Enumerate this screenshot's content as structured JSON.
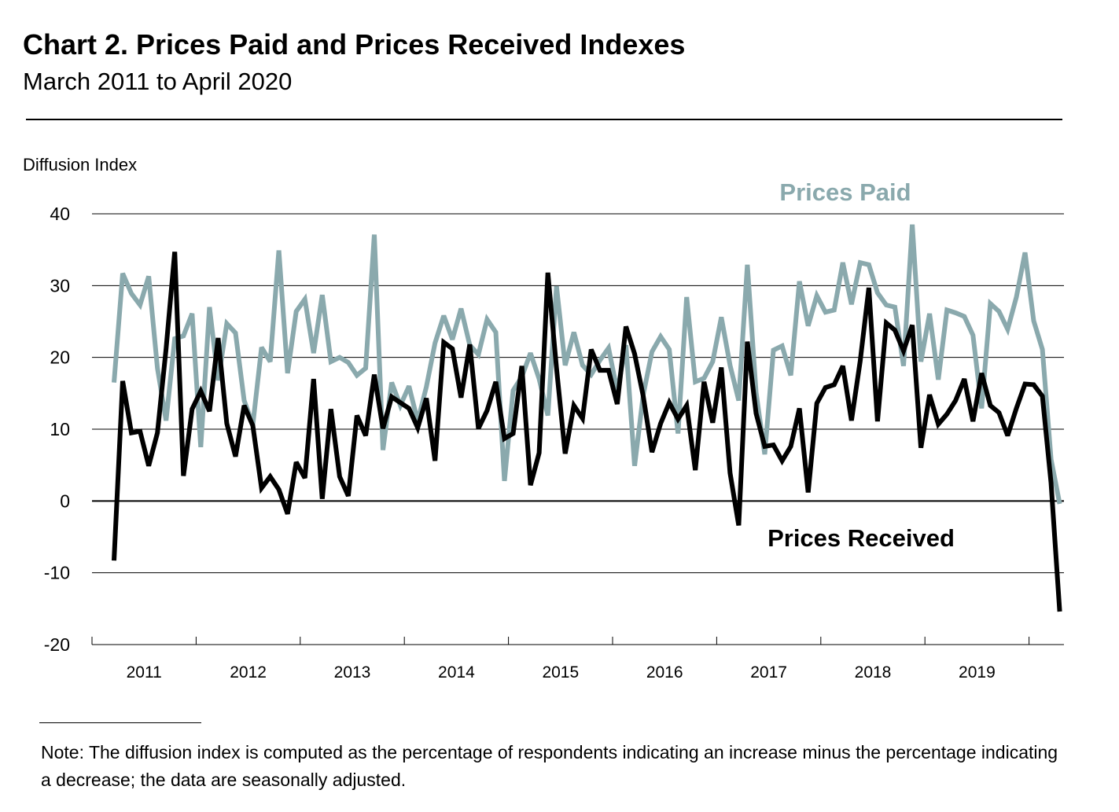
{
  "title": "Chart 2. Prices Paid and Prices Received Indexes",
  "subtitle": "March 2011 to April 2020",
  "note": "Note:  The diffusion index is computed as the percentage of respondents indicating an increase minus the percentage indicating a decrease; the data are seasonally adjusted.",
  "colors": {
    "prices_paid": "#8aa9ad",
    "prices_received": "#000000"
  },
  "chart_data": {
    "type": "line",
    "ylabel": "Diffusion Index",
    "ylim": [
      -20,
      40
    ],
    "yticks": [
      40,
      30,
      20,
      10,
      0,
      -10,
      -20
    ],
    "ytick_labels": [
      "40",
      "30",
      "20",
      "10",
      "0",
      "-10",
      "-20"
    ],
    "x_start": "2011-03",
    "x_end": "2020-04",
    "xtick_labels": [
      "2011",
      "2012",
      "2013",
      "2014",
      "2015",
      "2016",
      "2017",
      "2018",
      "2019"
    ],
    "grid": true,
    "series": [
      {
        "name": "Prices Paid",
        "label": "Prices Paid",
        "values": [
          16.5,
          31.7,
          28.9,
          27.3,
          31.3,
          18.5,
          11.2,
          22.6,
          23.0,
          26.1,
          7.5,
          27.0,
          16.8,
          24.7,
          23.4,
          14.0,
          10.6,
          21.4,
          19.4,
          34.9,
          17.8,
          26.4,
          28.1,
          20.6,
          28.7,
          19.4,
          20.0,
          19.3,
          17.5,
          18.5,
          37.1,
          7.1,
          16.5,
          13.3,
          16.0,
          11.1,
          15.9,
          22.0,
          25.8,
          22.5,
          26.8,
          21.7,
          20.4,
          25.3,
          23.5,
          2.8,
          15.4,
          17.3,
          20.6,
          17.0,
          11.9,
          29.9,
          18.9,
          23.5,
          18.9,
          17.6,
          19.6,
          21.3,
          15.3,
          21.7,
          4.9,
          14.8,
          20.8,
          22.9,
          21.1,
          9.4,
          28.4,
          16.6,
          17.1,
          19.4,
          25.6,
          18.9,
          14.0,
          32.9,
          15.1,
          6.5,
          21.0,
          21.6,
          17.5,
          30.6,
          24.4,
          28.6,
          26.3,
          26.6,
          33.2,
          27.4,
          33.2,
          32.9,
          29.0,
          27.3,
          27.0,
          18.8,
          38.5,
          19.4,
          26.1,
          16.9,
          26.6,
          26.2,
          25.7,
          23.1,
          12.9,
          27.5,
          26.4,
          23.9,
          28.4,
          34.6,
          25.1,
          21.1,
          5.8,
          -0.4
        ]
      },
      {
        "name": "Prices Received",
        "label": "Prices Received",
        "values": [
          -8.3,
          16.7,
          9.5,
          9.7,
          4.9,
          9.5,
          21.2,
          34.7,
          3.5,
          12.8,
          15.3,
          12.5,
          22.7,
          10.8,
          6.2,
          13.3,
          10.5,
          1.8,
          3.4,
          1.6,
          -1.8,
          5.4,
          3.2,
          17.0,
          0.3,
          12.8,
          3.4,
          0.7,
          11.9,
          9.1,
          17.6,
          10.1,
          14.5,
          13.7,
          12.9,
          10.2,
          14.3,
          5.6,
          22.1,
          21.2,
          14.4,
          21.8,
          10.1,
          12.6,
          16.6,
          8.7,
          9.4,
          18.8,
          2.2,
          6.7,
          31.8,
          18.5,
          6.6,
          13.3,
          11.5,
          21.1,
          18.2,
          18.2,
          13.5,
          24.3,
          20.5,
          14.6,
          6.8,
          10.8,
          13.7,
          11.4,
          13.3,
          4.3,
          16.6,
          10.9,
          18.6,
          3.9,
          -3.4,
          22.2,
          12.2,
          7.6,
          7.8,
          5.6,
          7.6,
          12.9,
          1.2,
          13.6,
          15.8,
          16.2,
          18.8,
          11.2,
          19.5,
          29.7,
          11.1,
          24.8,
          23.8,
          20.9,
          24.5,
          7.4,
          14.8,
          10.7,
          12.1,
          14.0,
          17.0,
          11.1,
          17.8,
          13.3,
          12.3,
          9.1,
          12.9,
          16.3,
          16.2,
          14.6,
          2.5,
          -15.4
        ]
      }
    ]
  }
}
